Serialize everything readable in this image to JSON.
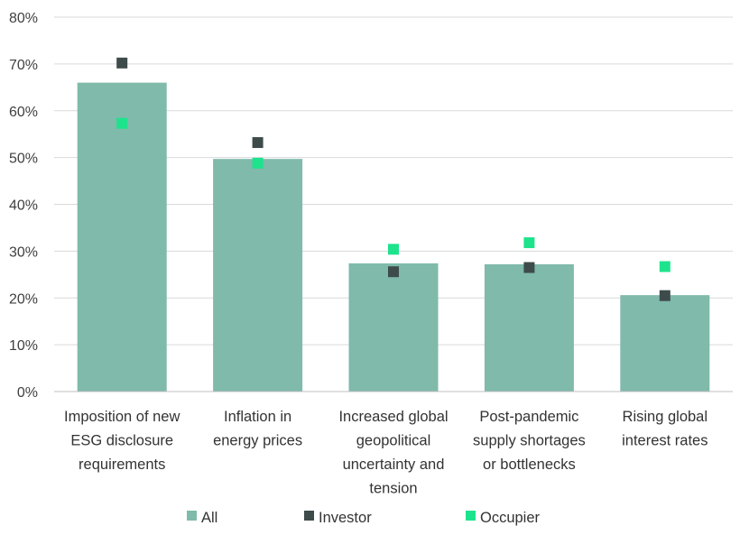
{
  "chart_data": {
    "type": "bar",
    "categories": [
      [
        "Imposition of new",
        "ESG disclosure",
        "requirements"
      ],
      [
        "Inflation in",
        "energy prices"
      ],
      [
        "Increased global",
        "geopolitical",
        "uncertainty and",
        "tension"
      ],
      [
        "Post-pandemic",
        "supply shortages",
        "or bottlenecks"
      ],
      [
        "Rising global",
        "interest rates"
      ]
    ],
    "series": [
      {
        "name": "All",
        "kind": "bar",
        "color": "#7fbaab",
        "values": [
          66,
          49.7,
          27.4,
          27.2,
          20.6
        ]
      },
      {
        "name": "Investor",
        "kind": "marker",
        "color": "#3e4b4b",
        "values": [
          70.2,
          53.2,
          25.6,
          26.5,
          20.5
        ]
      },
      {
        "name": "Occupier",
        "kind": "marker",
        "color": "#1ee38d",
        "values": [
          57.3,
          48.8,
          30.4,
          31.8,
          26.7
        ]
      }
    ],
    "yticks": [
      "0%",
      "10%",
      "20%",
      "30%",
      "40%",
      "50%",
      "60%",
      "70%",
      "80%"
    ],
    "ylim": [
      0,
      80
    ],
    "grid": true,
    "legend_position": "bottom"
  }
}
